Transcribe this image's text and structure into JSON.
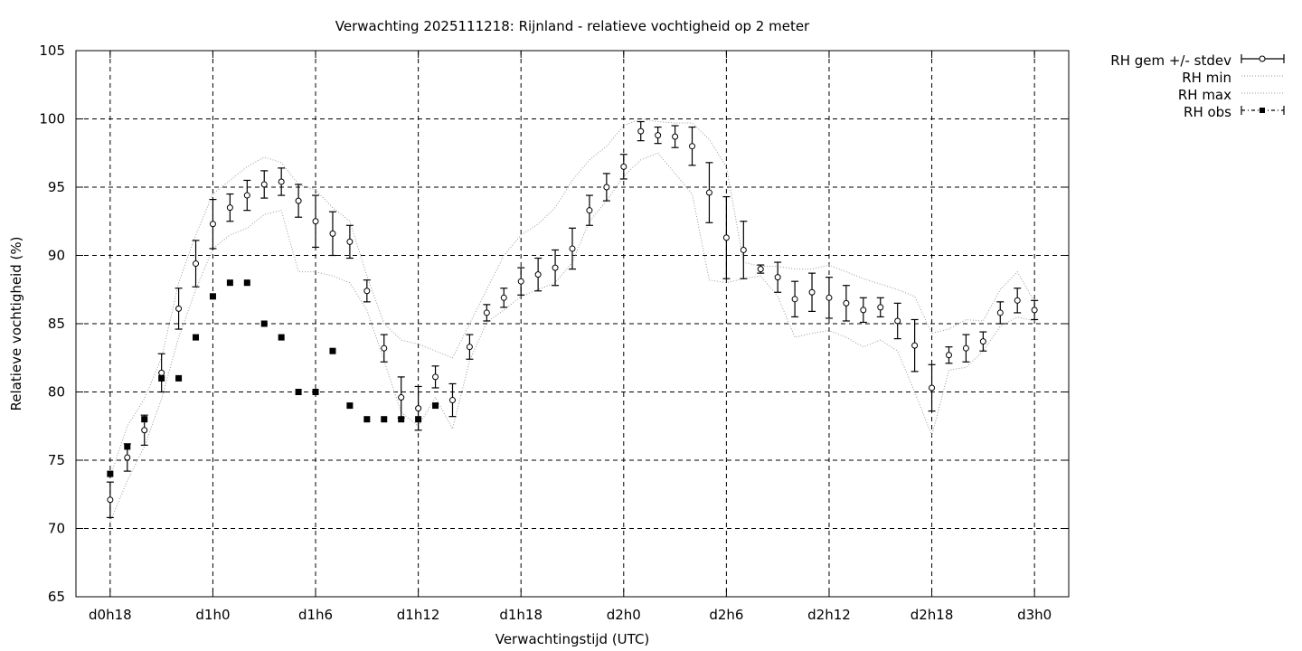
{
  "chart_data": {
    "type": "scatter",
    "title": "Verwachting 2025111218: Rijnland - relatieve vochtigheid op 2 meter",
    "xlabel": "Verwachtingstijd (UTC)",
    "ylabel": "Relatieve vochtigheid (%)",
    "xlim": [
      -2,
      56
    ],
    "ylim": [
      65,
      105
    ],
    "grid": true,
    "legend_position": "right",
    "x_ticks": [
      {
        "x": 0,
        "label": "d0h18"
      },
      {
        "x": 6,
        "label": "d1h0"
      },
      {
        "x": 12,
        "label": "d1h6"
      },
      {
        "x": 18,
        "label": "d1h12"
      },
      {
        "x": 24,
        "label": "d1h18"
      },
      {
        "x": 30,
        "label": "d2h0"
      },
      {
        "x": 36,
        "label": "d2h6"
      },
      {
        "x": 42,
        "label": "d2h12"
      },
      {
        "x": 48,
        "label": "d2h18"
      },
      {
        "x": 54,
        "label": "d3h0"
      }
    ],
    "y_ticks": [
      65,
      70,
      75,
      80,
      85,
      90,
      95,
      100,
      105
    ],
    "series": [
      {
        "name": "RH gem +/- stdev",
        "style": "points-errorbars",
        "x": [
          0,
          1,
          2,
          3,
          4,
          5,
          6,
          7,
          8,
          9,
          10,
          11,
          12,
          13,
          14,
          15,
          16,
          17,
          18,
          19,
          20,
          21,
          22,
          23,
          24,
          25,
          26,
          27,
          28,
          29,
          30,
          31,
          32,
          33,
          34,
          35,
          36,
          37,
          38,
          39,
          40,
          41,
          42,
          43,
          44,
          45,
          46,
          47,
          48,
          49,
          50,
          51,
          52,
          53,
          54
        ],
        "y": [
          72.1,
          75.2,
          77.2,
          81.4,
          86.1,
          89.4,
          92.3,
          93.5,
          94.4,
          95.2,
          95.4,
          94.0,
          92.5,
          91.6,
          91.0,
          87.4,
          83.2,
          79.6,
          78.8,
          81.1,
          79.4,
          83.3,
          85.8,
          86.9,
          88.1,
          88.6,
          89.1,
          90.5,
          93.3,
          95.0,
          96.5,
          99.1,
          98.8,
          98.7,
          98.0,
          94.6,
          91.3,
          90.4,
          89.0,
          88.4,
          86.8,
          87.3,
          86.9,
          86.5,
          86.0,
          86.2,
          85.2,
          83.4,
          80.3,
          82.7,
          83.2,
          83.7,
          85.8,
          86.7,
          86.0
        ],
        "stdev": [
          1.3,
          1.0,
          1.1,
          1.4,
          1.5,
          1.7,
          1.8,
          1.0,
          1.1,
          1.0,
          1.0,
          1.2,
          1.9,
          1.6,
          1.2,
          0.8,
          1.0,
          1.5,
          1.6,
          0.8,
          1.2,
          0.9,
          0.6,
          0.7,
          1.0,
          1.2,
          1.3,
          1.5,
          1.1,
          1.0,
          0.9,
          0.7,
          0.6,
          0.8,
          1.4,
          2.2,
          3.0,
          2.1,
          0.3,
          1.1,
          1.3,
          1.4,
          1.5,
          1.3,
          0.9,
          0.7,
          1.3,
          1.9,
          1.7,
          0.6,
          1.0,
          0.7,
          0.8,
          0.9,
          0.7
        ]
      },
      {
        "name": "RH min",
        "style": "dotted-line",
        "x": [
          0,
          1,
          2,
          3,
          4,
          5,
          6,
          7,
          8,
          9,
          10,
          11,
          12,
          13,
          14,
          15,
          16,
          17,
          18,
          19,
          20,
          21,
          22,
          23,
          24,
          25,
          26,
          27,
          28,
          29,
          30,
          31,
          32,
          33,
          34,
          35,
          36,
          37,
          38,
          39,
          40,
          41,
          42,
          43,
          44,
          45,
          46,
          47,
          48,
          49,
          50,
          51,
          52,
          53,
          54
        ],
        "y": [
          70.5,
          73.5,
          76.0,
          79.5,
          84.0,
          87.5,
          90.5,
          91.5,
          92.0,
          93.0,
          93.3,
          88.8,
          88.8,
          88.5,
          88.0,
          86.0,
          82.3,
          78.5,
          77.5,
          79.6,
          77.3,
          82.3,
          85.1,
          86.0,
          87.0,
          87.5,
          88.0,
          89.5,
          92.5,
          94.0,
          95.8,
          97.0,
          97.5,
          96.0,
          94.5,
          88.2,
          88.0,
          88.3,
          88.5,
          87.0,
          84.0,
          84.3,
          84.5,
          84.0,
          83.3,
          83.8,
          83.0,
          80.0,
          76.8,
          81.6,
          81.8,
          83.0,
          84.8,
          85.5,
          85.2
        ]
      },
      {
        "name": "RH max",
        "style": "dotted-line",
        "x": [
          0,
          1,
          2,
          3,
          4,
          5,
          6,
          7,
          8,
          9,
          10,
          11,
          12,
          13,
          14,
          15,
          16,
          17,
          18,
          19,
          20,
          21,
          22,
          23,
          24,
          25,
          26,
          27,
          28,
          29,
          30,
          31,
          32,
          33,
          34,
          35,
          36,
          37,
          38,
          39,
          40,
          41,
          42,
          43,
          44,
          45,
          46,
          47,
          48,
          49,
          50,
          51,
          52,
          53,
          54
        ],
        "y": [
          73.8,
          77.5,
          79.5,
          82.5,
          88.0,
          91.5,
          94.5,
          95.5,
          96.5,
          97.2,
          96.8,
          95.2,
          94.8,
          93.5,
          92.5,
          88.5,
          85.0,
          83.8,
          83.5,
          83.0,
          82.5,
          85.0,
          87.5,
          90.0,
          91.5,
          92.3,
          93.5,
          95.5,
          97.0,
          98.0,
          99.5,
          100.0,
          99.8,
          99.7,
          99.7,
          98.5,
          96.5,
          89.5,
          89.2,
          89.2,
          89.0,
          89.0,
          89.3,
          88.8,
          88.3,
          87.9,
          87.5,
          87.0,
          84.3,
          84.6,
          85.3,
          85.2,
          87.5,
          88.8,
          86.6
        ]
      },
      {
        "name": "RH obs",
        "style": "filled-squares",
        "x": [
          0,
          1,
          2,
          3,
          4,
          5,
          6,
          7,
          8,
          9,
          10,
          11,
          12,
          13,
          14,
          15,
          16,
          17,
          18,
          19
        ],
        "y": [
          74,
          76,
          78,
          81,
          81,
          84,
          87,
          88,
          88,
          85,
          84,
          80,
          80,
          83,
          79,
          78,
          78,
          78,
          78,
          79
        ]
      }
    ]
  }
}
